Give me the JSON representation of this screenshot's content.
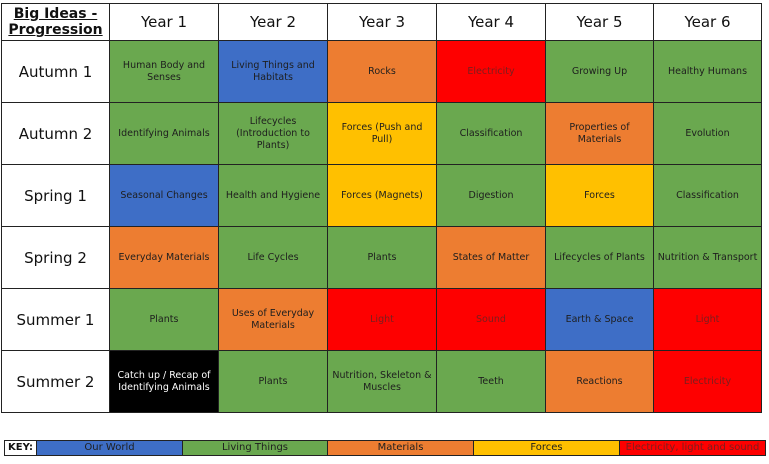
{
  "title": "Big Ideas - Progression",
  "columns": [
    "Year 1",
    "Year 2",
    "Year 3",
    "Year 4",
    "Year 5",
    "Year 6"
  ],
  "colors": {
    "green": "#6aa84f",
    "blue": "#3e6ec6",
    "orange": "#ed7d31",
    "yellow": "#ffc000",
    "red": "#fe0000",
    "black": "#000000"
  },
  "rows": [
    {
      "label": "Autumn 1",
      "cells": [
        {
          "text": "Human Body and Senses",
          "color": "green"
        },
        {
          "text": "Living Things and Habitats",
          "color": "blue"
        },
        {
          "text": "Rocks",
          "color": "orange"
        },
        {
          "text": "Electricity",
          "color": "red"
        },
        {
          "text": "Growing Up",
          "color": "green"
        },
        {
          "text": "Healthy Humans",
          "color": "green"
        }
      ]
    },
    {
      "label": "Autumn 2",
      "cells": [
        {
          "text": "Identifying Animals",
          "color": "green"
        },
        {
          "text": "Lifecycles (Introduction to Plants)",
          "color": "green"
        },
        {
          "text": "Forces (Push and Pull)",
          "color": "yellow"
        },
        {
          "text": "Classification",
          "color": "green"
        },
        {
          "text": "Properties of Materials",
          "color": "orange"
        },
        {
          "text": "Evolution",
          "color": "green"
        }
      ]
    },
    {
      "label": "Spring 1",
      "cells": [
        {
          "text": "Seasonal Changes",
          "color": "blue"
        },
        {
          "text": "Health and Hygiene",
          "color": "green"
        },
        {
          "text": "Forces (Magnets)",
          "color": "yellow"
        },
        {
          "text": "Digestion",
          "color": "green"
        },
        {
          "text": "Forces",
          "color": "yellow"
        },
        {
          "text": "Classification",
          "color": "green"
        }
      ]
    },
    {
      "label": "Spring 2",
      "cells": [
        {
          "text": "Everyday Materials",
          "color": "orange"
        },
        {
          "text": "Life Cycles",
          "color": "green"
        },
        {
          "text": "Plants",
          "color": "green"
        },
        {
          "text": "States of Matter",
          "color": "orange"
        },
        {
          "text": "Lifecycles of Plants",
          "color": "green"
        },
        {
          "text": "Nutrition & Transport",
          "color": "green"
        }
      ]
    },
    {
      "label": "Summer 1",
      "cells": [
        {
          "text": "Plants",
          "color": "green"
        },
        {
          "text": "Uses of Everyday Materials",
          "color": "orange"
        },
        {
          "text": "Light",
          "color": "red"
        },
        {
          "text": "Sound",
          "color": "red"
        },
        {
          "text": "Earth & Space",
          "color": "blue"
        },
        {
          "text": "Light",
          "color": "red"
        }
      ]
    },
    {
      "label": "Summer 2",
      "cells": [
        {
          "text": "Catch up / Recap of Identifying Animals",
          "color": "black"
        },
        {
          "text": "Plants",
          "color": "green"
        },
        {
          "text": "Nutrition, Skeleton & Muscles",
          "color": "green"
        },
        {
          "text": "Teeth",
          "color": "green"
        },
        {
          "text": "Reactions",
          "color": "orange"
        },
        {
          "text": "Electricity",
          "color": "red"
        }
      ]
    }
  ],
  "key": {
    "label": "KEY:",
    "items": [
      {
        "text": "Our World",
        "color": "blue"
      },
      {
        "text": "Living Things",
        "color": "green"
      },
      {
        "text": "Materials",
        "color": "orange"
      },
      {
        "text": "Forces",
        "color": "yellow"
      },
      {
        "text": "Electricity, light and sound",
        "color": "red"
      }
    ]
  }
}
